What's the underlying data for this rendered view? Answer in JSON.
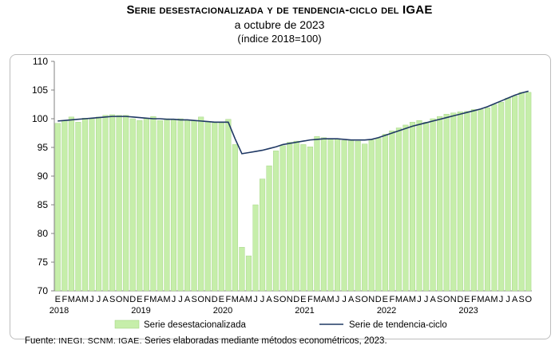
{
  "header": {
    "title": "Serie desestacionalizada y de tendencia-ciclo del IGAE",
    "subtitle": "a octubre de 2023",
    "index_note": "(índice 2018=100)"
  },
  "footer": {
    "source_label": "Fuente:",
    "source_org": "INEGI. SCNM. IGAE.",
    "source_text": "Series elaboradas mediante métodos econométricos, 2023."
  },
  "colors": {
    "bars": "#c6eeaa",
    "bars_stroke": "#9ccf7b",
    "line": "#1f3864",
    "axis": "#808080"
  },
  "chart_data": {
    "type": "bar",
    "title": "Serie desestacionalizada y de tendencia-ciclo del IGAE",
    "ylim": [
      70,
      110
    ],
    "yticks": [
      70,
      75,
      80,
      85,
      90,
      95,
      100,
      105,
      110
    ],
    "grid": false,
    "legend_position": "bottom",
    "month_labels": [
      "E",
      "F",
      "M",
      "A",
      "M",
      "J",
      "J",
      "A",
      "S",
      "O",
      "N",
      "D"
    ],
    "year_labels": [
      "2018",
      "2019",
      "2020",
      "2021",
      "2022",
      "2023"
    ],
    "categories": [
      "2018-01",
      "2018-02",
      "2018-03",
      "2018-04",
      "2018-05",
      "2018-06",
      "2018-07",
      "2018-08",
      "2018-09",
      "2018-10",
      "2018-11",
      "2018-12",
      "2019-01",
      "2019-02",
      "2019-03",
      "2019-04",
      "2019-05",
      "2019-06",
      "2019-07",
      "2019-08",
      "2019-09",
      "2019-10",
      "2019-11",
      "2019-12",
      "2020-01",
      "2020-02",
      "2020-03",
      "2020-04",
      "2020-05",
      "2020-06",
      "2020-07",
      "2020-08",
      "2020-09",
      "2020-10",
      "2020-11",
      "2020-12",
      "2021-01",
      "2021-02",
      "2021-03",
      "2021-04",
      "2021-05",
      "2021-06",
      "2021-07",
      "2021-08",
      "2021-09",
      "2021-10",
      "2021-11",
      "2021-12",
      "2022-01",
      "2022-02",
      "2022-03",
      "2022-04",
      "2022-05",
      "2022-06",
      "2022-07",
      "2022-08",
      "2022-09",
      "2022-10",
      "2022-11",
      "2022-12",
      "2023-01",
      "2023-02",
      "2023-03",
      "2023-04",
      "2023-05",
      "2023-06",
      "2023-07",
      "2023-08",
      "2023-09",
      "2023-10"
    ],
    "series": [
      {
        "name": "Serie desestacionalizada",
        "kind": "bar",
        "values": [
          99.2,
          99.7,
          100.3,
          99.4,
          100.1,
          100.0,
          100.3,
          100.6,
          100.7,
          100.6,
          100.6,
          100.0,
          99.7,
          100.1,
          100.4,
          99.7,
          100.0,
          99.9,
          100.0,
          99.8,
          99.7,
          100.3,
          99.5,
          99.3,
          99.3,
          99.9,
          95.5,
          77.6,
          76.1,
          85.0,
          89.5,
          91.8,
          94.4,
          95.3,
          95.9,
          96.1,
          95.5,
          95.1,
          96.9,
          96.7,
          96.4,
          96.5,
          96.2,
          96.3,
          96.1,
          95.6,
          96.3,
          96.6,
          97.3,
          97.9,
          98.4,
          98.9,
          99.4,
          99.7,
          99.4,
          100.0,
          100.4,
          100.8,
          101.0,
          101.2,
          101.3,
          101.6,
          101.6,
          101.9,
          102.5,
          102.9,
          103.6,
          104.0,
          104.6,
          104.6
        ]
      },
      {
        "name": "Serie de tendencia-ciclo",
        "kind": "line",
        "values": [
          99.6,
          99.7,
          99.8,
          99.9,
          100.0,
          100.1,
          100.2,
          100.3,
          100.4,
          100.4,
          100.4,
          100.3,
          100.2,
          100.1,
          100.0,
          100.0,
          99.9,
          99.9,
          99.8,
          99.8,
          99.7,
          99.6,
          99.5,
          99.4,
          99.4,
          99.4,
          96.5,
          93.9,
          94.1,
          94.3,
          94.5,
          94.8,
          95.1,
          95.5,
          95.7,
          95.9,
          96.1,
          96.3,
          96.4,
          96.5,
          96.5,
          96.5,
          96.4,
          96.3,
          96.3,
          96.3,
          96.4,
          96.7,
          97.1,
          97.5,
          97.9,
          98.3,
          98.7,
          99.0,
          99.3,
          99.6,
          99.9,
          100.2,
          100.5,
          100.8,
          101.1,
          101.4,
          101.7,
          102.1,
          102.6,
          103.1,
          103.6,
          104.1,
          104.5,
          104.8
        ]
      }
    ]
  }
}
